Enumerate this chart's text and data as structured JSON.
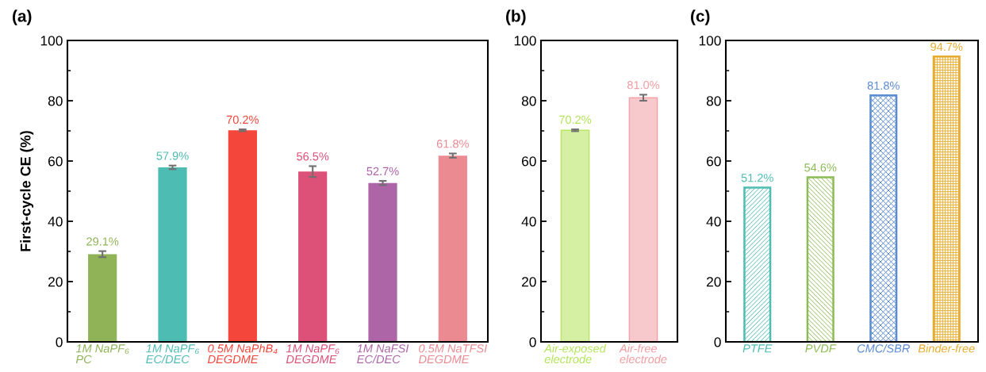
{
  "chart_data": [
    {
      "type": "bar",
      "title": "(a)",
      "ylabel": "First-cycle CE (%)",
      "categories": [
        "1M NaPF₆\nPC",
        "1M NaPF₆\nEC/DEC",
        "0.5M NaPhB₄\nDEGDME",
        "1M NaPF₆\nDEGDME",
        "1M NaFSI\nEC/DEC",
        "0.5M NaTFSI\nDEGDME"
      ],
      "values": [
        29.1,
        57.9,
        70.2,
        56.5,
        52.7,
        61.8
      ],
      "errors": [
        1.0,
        0.6,
        0.3,
        1.8,
        0.7,
        0.7
      ],
      "value_labels": [
        "29.1%",
        "57.9%",
        "70.2%",
        "56.5%",
        "52.7%",
        "61.8%"
      ],
      "colors": [
        "#8fb356",
        "#4dbcb2",
        "#f5463c",
        "#dd5078",
        "#ad65a8",
        "#ec8a92"
      ],
      "ylim": [
        0,
        100
      ],
      "yticks": [
        0,
        {
          "value": 10,
          "label": null
        },
        20,
        {
          "value": 30,
          "label": null
        },
        40,
        {
          "value": 50,
          "label": null
        },
        60,
        {
          "value": 70,
          "label": null
        },
        80,
        {
          "value": 90,
          "label": null
        },
        100
      ]
    },
    {
      "type": "bar",
      "title": "(b)",
      "categories": [
        "Air-exposed\nelectrode",
        "Air-free\nelectrode"
      ],
      "values": [
        70.2,
        81.0
      ],
      "errors": [
        0.3,
        1.0
      ],
      "value_labels": [
        "70.2%",
        "81.0%"
      ],
      "colors": [
        "#b2e458",
        "#f29ca2"
      ],
      "ylim": [
        0,
        100
      ],
      "yticks": [
        0,
        {
          "value": 10,
          "label": null
        },
        20,
        {
          "value": 30,
          "label": null
        },
        40,
        {
          "value": 50,
          "label": null
        },
        60,
        {
          "value": 70,
          "label": null
        },
        80,
        {
          "value": 90,
          "label": null
        },
        100
      ]
    },
    {
      "type": "bar",
      "title": "(c)",
      "categories": [
        "PTFE",
        "PVDF",
        "CMC/SBR",
        "Binder-free"
      ],
      "values": [
        51.2,
        54.6,
        81.8,
        94.7
      ],
      "value_labels": [
        "51.2%",
        "54.6%",
        "81.8%",
        "94.7%"
      ],
      "colors": [
        "#4dbdb3",
        "#8cbc55",
        "#5b8bd0",
        "#e6ac2f"
      ],
      "ylim": [
        0,
        100
      ],
      "yticks": [
        0,
        {
          "value": 10,
          "label": null
        },
        20,
        {
          "value": 30,
          "label": null
        },
        40,
        {
          "value": 50,
          "label": null
        },
        60,
        {
          "value": 70,
          "label": null
        },
        80,
        {
          "value": 90,
          "label": null
        },
        100
      ]
    }
  ]
}
